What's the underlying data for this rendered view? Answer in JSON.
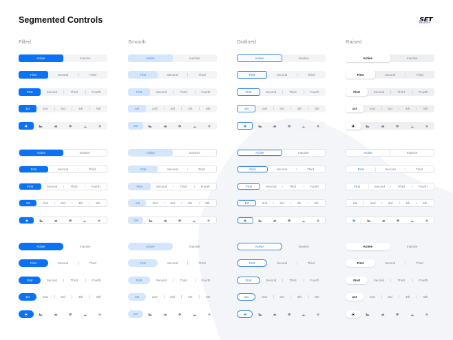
{
  "page": {
    "title": "Segmented Controls",
    "logo": {
      "top": "SET",
      "sub": "PRODUCT"
    }
  },
  "columns": [
    {
      "key": "filled",
      "label": "Filled"
    },
    {
      "key": "smooth",
      "label": "Smooth"
    },
    {
      "key": "outlined",
      "label": "Outlined"
    },
    {
      "key": "raised",
      "label": "Raised"
    }
  ],
  "groups": [
    {
      "key": "g1",
      "variant": "flat grey track"
    },
    {
      "key": "g2",
      "variant": "bordered white track"
    },
    {
      "key": "g3",
      "variant": "pill, no track"
    }
  ],
  "rows": {
    "two": [
      "Active",
      "Inactive"
    ],
    "three": [
      "First",
      "Second",
      "Third"
    ],
    "four": [
      "First",
      "Second",
      "Third",
      "Fourth"
    ],
    "five": [
      "1st",
      "2nd",
      "3rd",
      "4th",
      "5th"
    ],
    "icons": [
      "sun-icon",
      "cloud-sun-icon",
      "cloud-icon",
      "cloud-rain-icon",
      "wind-icon",
      "snowflake-icon"
    ],
    "smooth_icon_first_label": "1st"
  },
  "colors": {
    "filled_active": "#0a72f6",
    "smooth_active": "#d3e6fc",
    "smooth_text": "#3a84ea",
    "outlined_border": "#3b86e6",
    "track_grey": "#f3f4f6",
    "label_grey": "#8a8f99",
    "inactive_text": "#7b7f87"
  }
}
